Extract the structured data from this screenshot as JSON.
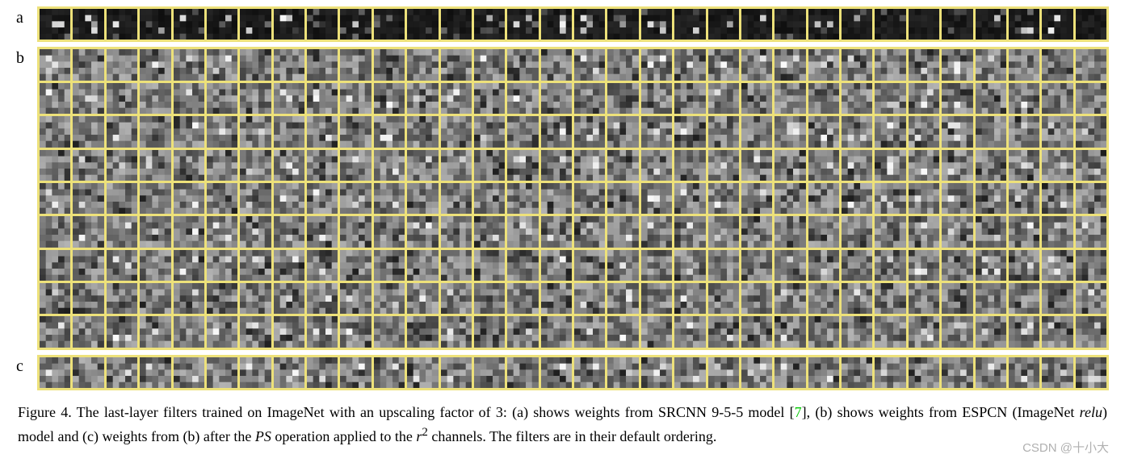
{
  "figure": {
    "panels": {
      "a": {
        "label": "a",
        "rows": 1,
        "cols": 32,
        "cell_bg": "#1a1a1a",
        "cell_variance": "dark",
        "grid_bg": "#ede17a"
      },
      "b": {
        "label": "b",
        "rows": 9,
        "cols": 32,
        "cell_bg": "#808080",
        "cell_variance": "mid",
        "grid_bg": "#ede17a"
      },
      "c": {
        "label": "c",
        "rows": 1,
        "cols": 32,
        "cell_bg": "#808080",
        "cell_variance": "mid",
        "grid_bg": "#ede17a"
      }
    },
    "caption_parts": {
      "prefix": "Figure 4. The last-layer filters trained on ImageNet with an upscaling factor of 3: (a) shows weights from SRCNN 9-5-5 model [",
      "cite": "7",
      "mid1": "], (b) shows weights from ESPCN (ImageNet ",
      "relu": "relu",
      "mid2": ") model and (c) weights from (b) after the ",
      "ps": "PS",
      "mid3": " operation applied to the ",
      "r": "r",
      "sup": "2",
      "suffix": " channels. The filters are in their default ordering."
    }
  },
  "styling": {
    "body_bg": "#ffffff",
    "caption_fontsize": 18,
    "label_fontsize": 20,
    "grid_gap": 3,
    "grid_pad": 3,
    "cite_color": "#00c800",
    "watermark_color": "#b0b0b0"
  },
  "watermark": "CSDN @十小大"
}
